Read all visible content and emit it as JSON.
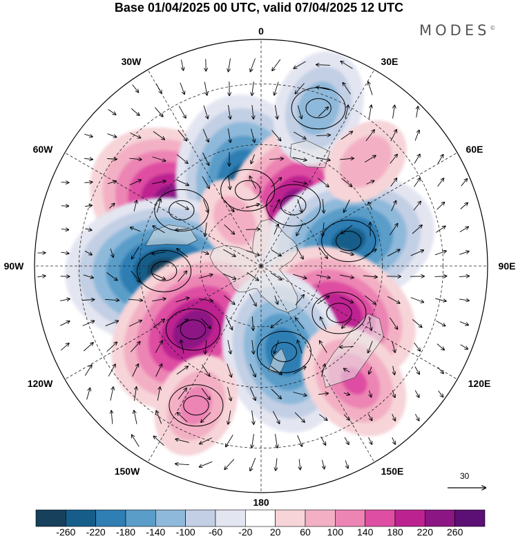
{
  "title": "Base 01/04/2025 00 UTC, valid 07/04/2025 12 UTC",
  "brand": "MODES",
  "brand_mark": "©",
  "longitude_labels": {
    "n0": "0",
    "n30e": "30E",
    "n60e": "60E",
    "n90e": "90E",
    "n120e": "120E",
    "n150e": "150E",
    "n180": "180",
    "n150w": "150W",
    "n120w": "120W",
    "n90w": "90W",
    "n60w": "60W",
    "n30w": "30W"
  },
  "reference_vector": {
    "label": "30"
  },
  "colorbar": {
    "ticks": [
      "-260",
      "-220",
      "-180",
      "-140",
      "-100",
      "-60",
      "-20",
      "20",
      "60",
      "100",
      "140",
      "180",
      "220",
      "260"
    ],
    "colors": [
      "#16405b",
      "#165d8a",
      "#2f7eb4",
      "#5a9dc9",
      "#8fb9da",
      "#c2cfe4",
      "#e3e5f1",
      "#ffffff",
      "#f6d4d8",
      "#f3b0c4",
      "#ec84b4",
      "#de4ea2",
      "#bd2390",
      "#8c1684",
      "#5c0f74"
    ]
  },
  "anomaly_cells": [
    {
      "lon": -55,
      "colat": 48,
      "value": 270
    },
    {
      "lon": -10,
      "colat": 38,
      "value": -260
    },
    {
      "lon": 28,
      "colat": 34,
      "value": 230
    },
    {
      "lon": 74,
      "colat": 45,
      "value": -230
    },
    {
      "lon": -93,
      "colat": 48,
      "value": -270
    },
    {
      "lon": -133,
      "colat": 46,
      "value": 245
    },
    {
      "lon": 121,
      "colat": 45,
      "value": 210
    },
    {
      "lon": 165,
      "colat": 44,
      "value": -210
    },
    {
      "lon": 20,
      "colat": 83,
      "value": -130
    },
    {
      "lon": 45,
      "colat": 73,
      "value": 90
    },
    {
      "lon": -155,
      "colat": 76,
      "value": 110
    },
    {
      "lon": 141,
      "colat": 73,
      "value": 140
    },
    {
      "lon": -30,
      "colat": 26,
      "value": 80
    }
  ],
  "streamline_centers": [
    {
      "lon": -55,
      "colat": 48,
      "dir": 1
    },
    {
      "lon": -10,
      "colat": 38,
      "dir": -1
    },
    {
      "lon": 28,
      "colat": 34,
      "dir": 1
    },
    {
      "lon": 74,
      "colat": 45,
      "dir": -1
    },
    {
      "lon": -93,
      "colat": 48,
      "dir": -1
    },
    {
      "lon": -133,
      "colat": 46,
      "dir": 1
    },
    {
      "lon": 121,
      "colat": 45,
      "dir": 1
    },
    {
      "lon": 165,
      "colat": 44,
      "dir": -1
    },
    {
      "lon": 20,
      "colat": 83,
      "dir": -1
    },
    {
      "lon": -155,
      "colat": 76,
      "dir": 1
    }
  ]
}
